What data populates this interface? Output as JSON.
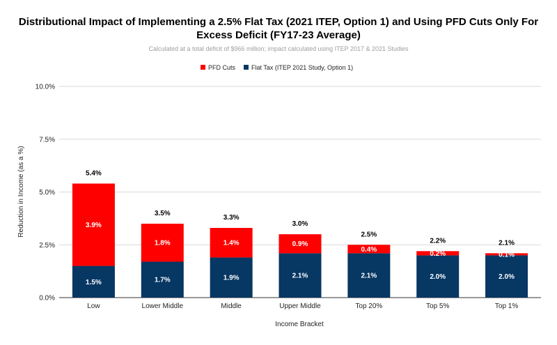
{
  "chart_data": {
    "type": "bar",
    "stacked": true,
    "title_lines": [
      "Distributional Impact of Implementing a 2.5% Flat Tax (2021 ITEP, Option 1) and Using PFD Cuts Only For",
      "Excess Deficit (FY17-23 Average)"
    ],
    "subtitle": "Calculated at a total deficit of $966 million; impact calculated using ITEP 2017 & 2021 Studies",
    "xlabel": "Income Bracket",
    "ylabel": "Reduction in Income (as a %)",
    "ylim": [
      0,
      10
    ],
    "yticks": [
      "0.0%",
      "2.5%",
      "5.0%",
      "7.5%",
      "10.0%"
    ],
    "ytick_values": [
      0,
      2.5,
      5,
      7.5,
      10
    ],
    "grid": true,
    "legend_position": "top-center",
    "categories": [
      "Low",
      "Lower Middle",
      "Middle",
      "Upper Middle",
      "Top 20%",
      "Top 5%",
      "Top 1%"
    ],
    "series": [
      {
        "name": "PFD Cuts",
        "color": "#ff0000",
        "values": [
          3.9,
          1.8,
          1.4,
          0.9,
          0.4,
          0.2,
          0.1
        ],
        "labels": [
          "3.9%",
          "1.8%",
          "1.4%",
          "0.9%",
          "0.4%",
          "0.2%",
          "0.1%"
        ]
      },
      {
        "name": "Flat Tax (ITEP 2021 Study, Option 1)",
        "color": "#073763",
        "values": [
          1.5,
          1.7,
          1.9,
          2.1,
          2.1,
          2.0,
          2.0
        ],
        "labels": [
          "1.5%",
          "1.7%",
          "1.9%",
          "2.1%",
          "2.1%",
          "2.0%",
          "2.0%"
        ]
      }
    ],
    "totals": [
      5.4,
      3.5,
      3.3,
      3.0,
      2.5,
      2.2,
      2.1
    ],
    "total_labels": [
      "5.4%",
      "3.5%",
      "3.3%",
      "3.0%",
      "2.5%",
      "2.2%",
      "2.1%"
    ]
  }
}
